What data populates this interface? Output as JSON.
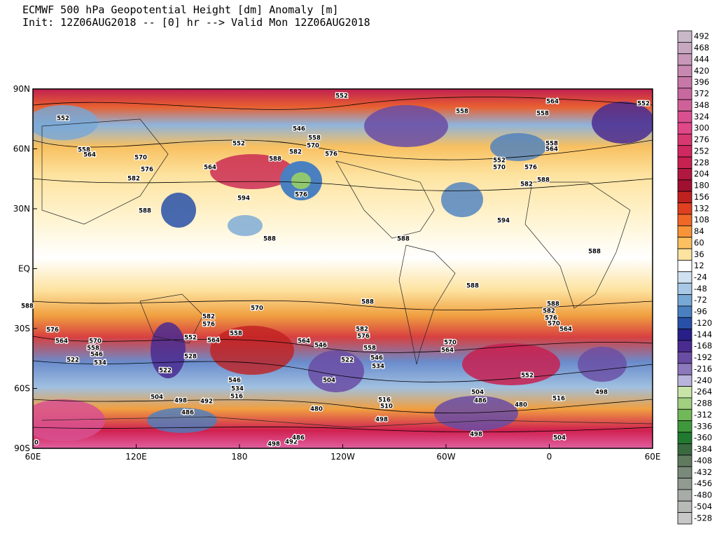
{
  "header": {
    "title": "ECMWF 500 hPa Geopotential Height [dm] Anomaly [m]",
    "subtitle": "Init: 12Z06AUG2018 -- [0] hr --> Valid Mon 12Z06AUG2018"
  },
  "map": {
    "lat_labels": [
      "90N",
      "60N",
      "30N",
      "EQ",
      "30S",
      "60S",
      "90S"
    ],
    "lon_labels": [
      "60E",
      "120E",
      "180",
      "120W",
      "60W",
      "0",
      "60E"
    ],
    "contour_labels": [
      552,
      564,
      558,
      558,
      552,
      552,
      558,
      564,
      570,
      576,
      582,
      564,
      552,
      546,
      558,
      570,
      582,
      588,
      576,
      594,
      576,
      588,
      588,
      588,
      594,
      552,
      570,
      576,
      582,
      588,
      558,
      564,
      588,
      588,
      588,
      588,
      576,
      564,
      570,
      558,
      546,
      534,
      522,
      570,
      582,
      576,
      558,
      564,
      552,
      528,
      522,
      564,
      546,
      582,
      576,
      558,
      546,
      534,
      522,
      504,
      546,
      534,
      516,
      504,
      498,
      492,
      486,
      480,
      516,
      510,
      498,
      504,
      486,
      480,
      498,
      504,
      498,
      492,
      486,
      570,
      564,
      588,
      582,
      576,
      570,
      564,
      552,
      516,
      498,
      0
    ]
  },
  "colorbar": {
    "labels": [
      492,
      468,
      444,
      420,
      396,
      372,
      348,
      324,
      300,
      276,
      252,
      228,
      204,
      180,
      156,
      132,
      108,
      84,
      60,
      36,
      12,
      -24,
      -48,
      -72,
      -96,
      -120,
      -144,
      -168,
      -192,
      -216,
      -240,
      -264,
      -288,
      -312,
      -336,
      -360,
      -384,
      -408,
      -432,
      -456,
      -480,
      -504,
      -528
    ],
    "colors": [
      "#c8b8c8",
      "#c8a8c0",
      "#c898b8",
      "#c888b0",
      "#c878a8",
      "#c868a0",
      "#d06098",
      "#d85090",
      "#e04888",
      "#d83870",
      "#d02860",
      "#c82050",
      "#b01840",
      "#a01030",
      "#c02020",
      "#e04020",
      "#f06828",
      "#f89438",
      "#fcc060",
      "#fde3a0",
      "#ffffff",
      "#d0e2f2",
      "#a8c8e6",
      "#78a8d6",
      "#4a80c0",
      "#2850a8",
      "#281f88",
      "#4a2c90",
      "#6a4ca4",
      "#8c78bc",
      "#b8b4dc",
      "#c8e4a8",
      "#a0d080",
      "#70b858",
      "#40983c",
      "#207a30",
      "#3a6a40",
      "#607a60",
      "#7a8a7a",
      "#909a90",
      "#a8aca8",
      "#b8bab8",
      "#c8c8c8"
    ]
  }
}
